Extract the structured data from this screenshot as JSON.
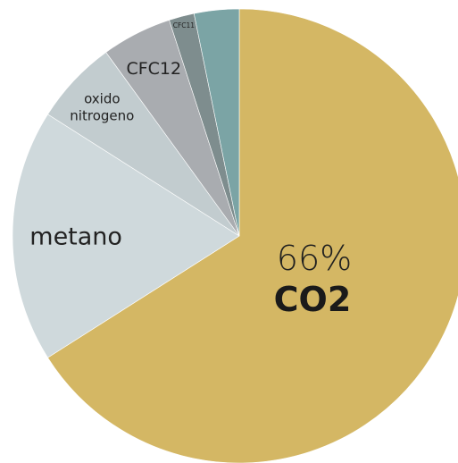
{
  "chart_data": {
    "type": "pie",
    "start_angle_deg": 0,
    "direction": "clockwise",
    "slices": [
      {
        "label": "CO2",
        "percent_label": "66%",
        "value": 66,
        "color": "#d4b764"
      },
      {
        "label": "metano",
        "value": 18,
        "color": "#cfd9dc"
      },
      {
        "label": "oxido\nnitrogeno",
        "value": 6,
        "color": "#c2cccf"
      },
      {
        "label": "CFC12",
        "value": 5,
        "color": "#a9acb0"
      },
      {
        "label": "CFC11",
        "value": 1.8,
        "color": "#7e8d8e"
      },
      {
        "label": "",
        "value": 3.2,
        "color": "#7ba4a5"
      }
    ]
  }
}
